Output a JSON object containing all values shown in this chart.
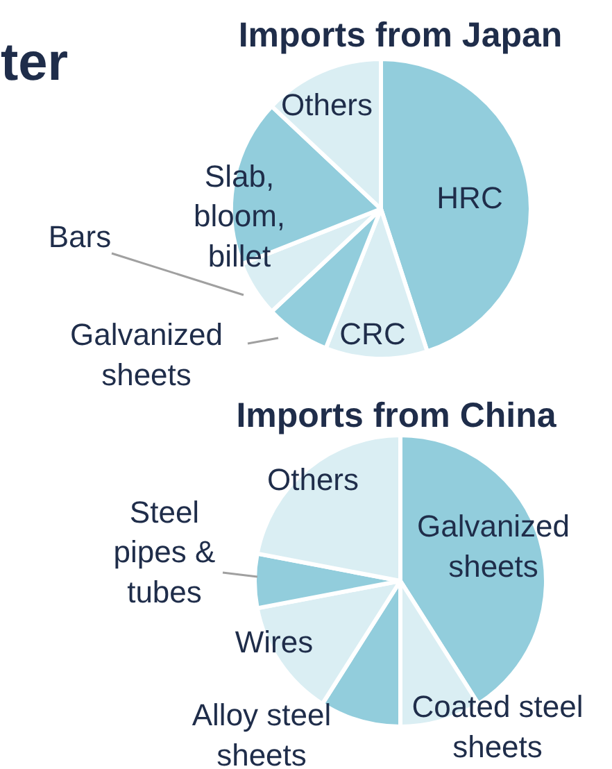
{
  "chart_data": [
    {
      "type": "pie",
      "title": "Imports from Japan",
      "annotations": [
        "ter"
      ],
      "categories": [
        "HRC",
        "CRC",
        "Galvanized sheets",
        "Bars",
        "Slab, bloom, billet",
        "Others"
      ],
      "values": [
        45,
        11,
        7,
        6,
        18,
        13
      ],
      "colors": [
        "#92cddc",
        "#daeef3",
        "#92cddc",
        "#daeef3",
        "#92cddc",
        "#daeef3"
      ]
    },
    {
      "type": "pie",
      "title": "Imports from China",
      "categories": [
        "Galvanized sheets",
        "Coated steel sheets",
        "Alloy steel sheets",
        "Wires",
        "Steel pipes & tubes",
        "Others"
      ],
      "values": [
        41,
        9,
        9,
        13,
        6,
        22
      ],
      "colors": [
        "#92cddc",
        "#daeef3",
        "#92cddc",
        "#daeef3",
        "#92cddc",
        "#daeef3"
      ]
    }
  ]
}
